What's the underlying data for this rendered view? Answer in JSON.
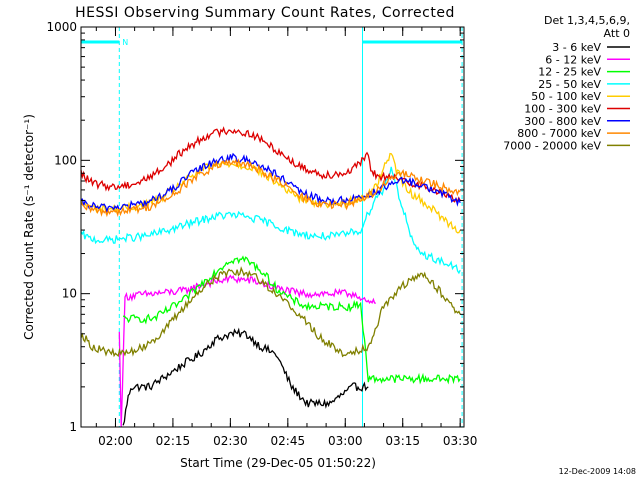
{
  "chart_data": {
    "type": "line",
    "title": "HESSI Observing Summary Count Rates, Corrected",
    "xlabel": "Start Time (29-Dec-05 01:50:22)",
    "ylabel": "Corrected Count Rate (s⁻¹ detector⁻¹)",
    "x_unit": "minutes since 01:50",
    "xlim": [
      111.0,
      211.0
    ],
    "ylim": [
      1,
      1000
    ],
    "yscale": "log",
    "xticks": [
      {
        "label": "02:00",
        "value": 120
      },
      {
        "label": "02:15",
        "value": 135
      },
      {
        "label": "02:30",
        "value": 150
      },
      {
        "label": "02:45",
        "value": 165
      },
      {
        "label": "03:00",
        "value": 180
      },
      {
        "label": "03:15",
        "value": 195
      },
      {
        "label": "03:30",
        "value": 210
      }
    ],
    "yticks": [
      {
        "label": "1",
        "value": 1
      },
      {
        "label": "10",
        "value": 10
      },
      {
        "label": "100",
        "value": 100
      },
      {
        "label": "1000",
        "value": 1000
      }
    ],
    "legend": {
      "header": [
        "Det 1,3,4,5,6,9,",
        "Att 0"
      ],
      "placement": "right"
    },
    "series": [
      {
        "name": "3 - 6 keV",
        "color": "#000000",
        "points": [
          [
            122,
            1
          ],
          [
            123,
            1.5
          ],
          [
            124,
            2
          ],
          [
            129,
            2
          ],
          [
            134,
            2.5
          ],
          [
            138,
            3
          ],
          [
            142,
            3.5
          ],
          [
            146,
            4.5
          ],
          [
            150,
            5
          ],
          [
            154,
            5
          ],
          [
            158,
            4
          ],
          [
            162,
            3.5
          ],
          [
            166,
            2
          ],
          [
            170,
            1.5
          ],
          [
            176,
            1.5
          ],
          [
            182,
            2
          ],
          [
            184,
            2
          ],
          [
            186,
            2
          ]
        ]
      },
      {
        "name": "6 - 12 keV",
        "color": "#ff00ff",
        "points": [
          [
            121,
            5
          ],
          [
            121.5,
            1
          ],
          [
            122.5,
            9.5
          ],
          [
            130,
            10
          ],
          [
            138,
            10.5
          ],
          [
            144,
            12
          ],
          [
            150,
            13
          ],
          [
            156,
            12.5
          ],
          [
            162,
            11
          ],
          [
            168,
            10
          ],
          [
            176,
            10
          ],
          [
            182,
            10
          ],
          [
            183,
            10
          ],
          [
            184,
            9
          ],
          [
            186,
            8.5
          ],
          [
            188,
            8.5
          ]
        ]
      },
      {
        "name": "12 - 25 keV",
        "color": "#00ff00",
        "points": [
          [
            122,
            6.5
          ],
          [
            130,
            6.5
          ],
          [
            138,
            9
          ],
          [
            144,
            13
          ],
          [
            150,
            18
          ],
          [
            154,
            18
          ],
          [
            158,
            15
          ],
          [
            162,
            11
          ],
          [
            166,
            9
          ],
          [
            170,
            8
          ],
          [
            176,
            8
          ],
          [
            182,
            8
          ],
          [
            184,
            8.5
          ],
          [
            186,
            2.3
          ],
          [
            210,
            2.3
          ]
        ]
      },
      {
        "name": "25 - 50 keV",
        "color": "#00ffff",
        "points": [
          [
            111,
            28
          ],
          [
            113,
            26
          ],
          [
            117,
            25
          ],
          [
            122,
            26
          ],
          [
            128,
            27
          ],
          [
            134,
            30
          ],
          [
            140,
            34
          ],
          [
            146,
            38
          ],
          [
            150,
            39
          ],
          [
            154,
            38
          ],
          [
            160,
            34
          ],
          [
            166,
            29
          ],
          [
            172,
            27
          ],
          [
            178,
            27
          ],
          [
            184,
            30
          ],
          [
            186,
            40
          ],
          [
            188,
            53
          ],
          [
            190,
            60
          ],
          [
            192,
            90
          ],
          [
            194,
            55
          ],
          [
            196,
            35
          ],
          [
            198,
            22
          ],
          [
            200,
            20
          ],
          [
            204,
            18
          ],
          [
            208,
            16
          ],
          [
            210,
            15
          ]
        ]
      },
      {
        "name": "50 - 100 keV",
        "color": "#ffcc00",
        "points": [
          [
            111,
            48
          ],
          [
            114,
            44
          ],
          [
            120,
            43
          ],
          [
            126,
            45
          ],
          [
            132,
            52
          ],
          [
            138,
            70
          ],
          [
            144,
            90
          ],
          [
            150,
            95
          ],
          [
            156,
            88
          ],
          [
            162,
            68
          ],
          [
            168,
            52
          ],
          [
            174,
            47
          ],
          [
            180,
            48
          ],
          [
            186,
            55
          ],
          [
            188,
            65
          ],
          [
            190,
            85
          ],
          [
            192,
            120
          ],
          [
            193,
            90
          ],
          [
            196,
            60
          ],
          [
            200,
            50
          ],
          [
            204,
            40
          ],
          [
            208,
            32
          ],
          [
            210,
            30
          ]
        ]
      },
      {
        "name": "100 - 300 keV",
        "color": "#dd0000",
        "points": [
          [
            111,
            80
          ],
          [
            114,
            67
          ],
          [
            120,
            63
          ],
          [
            126,
            68
          ],
          [
            132,
            85
          ],
          [
            138,
            120
          ],
          [
            144,
            155
          ],
          [
            150,
            170
          ],
          [
            156,
            155
          ],
          [
            162,
            120
          ],
          [
            168,
            90
          ],
          [
            174,
            78
          ],
          [
            180,
            80
          ],
          [
            184,
            95
          ],
          [
            186,
            110
          ],
          [
            187,
            80
          ],
          [
            190,
            75
          ],
          [
            194,
            72
          ],
          [
            200,
            65
          ],
          [
            206,
            55
          ],
          [
            210,
            50
          ]
        ]
      },
      {
        "name": "300 - 800 keV",
        "color": "#0000ff",
        "points": [
          [
            111,
            48
          ],
          [
            116,
            44
          ],
          [
            122,
            45
          ],
          [
            128,
            48
          ],
          [
            134,
            58
          ],
          [
            140,
            80
          ],
          [
            146,
            100
          ],
          [
            150,
            105
          ],
          [
            156,
            98
          ],
          [
            162,
            78
          ],
          [
            168,
            58
          ],
          [
            174,
            50
          ],
          [
            180,
            50
          ],
          [
            186,
            55
          ],
          [
            190,
            62
          ],
          [
            194,
            70
          ],
          [
            198,
            68
          ],
          [
            202,
            62
          ],
          [
            206,
            55
          ],
          [
            210,
            48
          ]
        ]
      },
      {
        "name": "800 - 7000 keV",
        "color": "#ff8800",
        "points": [
          [
            111,
            45
          ],
          [
            116,
            41
          ],
          [
            122,
            42
          ],
          [
            128,
            44
          ],
          [
            134,
            52
          ],
          [
            140,
            72
          ],
          [
            146,
            90
          ],
          [
            150,
            96
          ],
          [
            156,
            90
          ],
          [
            162,
            72
          ],
          [
            168,
            54
          ],
          [
            174,
            46
          ],
          [
            180,
            46
          ],
          [
            186,
            54
          ],
          [
            190,
            65
          ],
          [
            194,
            80
          ],
          [
            198,
            75
          ],
          [
            202,
            68
          ],
          [
            206,
            62
          ],
          [
            210,
            58
          ]
        ]
      },
      {
        "name": "7000 - 20000 keV",
        "color": "#808000",
        "points": [
          [
            111,
            5
          ],
          [
            114,
            4
          ],
          [
            120,
            3.5
          ],
          [
            126,
            3.8
          ],
          [
            132,
            5
          ],
          [
            138,
            8
          ],
          [
            144,
            12
          ],
          [
            150,
            15
          ],
          [
            156,
            14
          ],
          [
            162,
            10
          ],
          [
            168,
            7
          ],
          [
            174,
            4.5
          ],
          [
            180,
            3.5
          ],
          [
            186,
            4
          ],
          [
            190,
            8
          ],
          [
            194,
            11
          ],
          [
            198,
            13
          ],
          [
            200,
            14
          ],
          [
            204,
            11
          ],
          [
            208,
            8
          ],
          [
            210,
            7
          ]
        ]
      }
    ],
    "markers": [
      {
        "x": 111.0,
        "style": "solid",
        "color": "#00ffff"
      },
      {
        "x": 121.0,
        "style": "dashed",
        "color": "#00ffff"
      },
      {
        "x": 184.5,
        "style": "solid",
        "color": "#00ffff"
      },
      {
        "x": 210.5,
        "style": "dashed",
        "color": "#00ffff"
      }
    ],
    "top_bars": [
      {
        "x0": 111.0,
        "x1": 121.0,
        "label": "N",
        "color": "#00ffff"
      },
      {
        "x0": 184.5,
        "x1": 210.5,
        "label": "",
        "color": "#00ffff"
      }
    ],
    "grid": false,
    "timestamp": "12-Dec-2009 14:08"
  }
}
